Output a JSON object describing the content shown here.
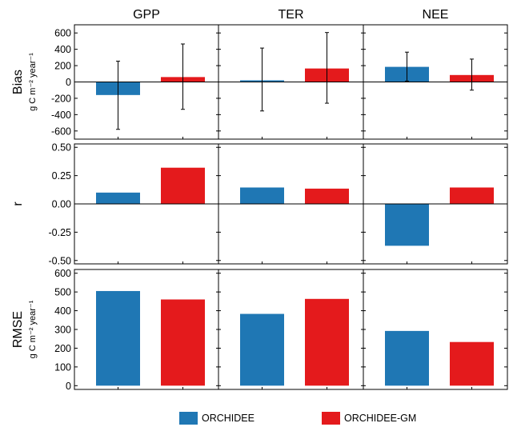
{
  "chart_data": {
    "type": "bar",
    "columns": [
      "GPP",
      "TER",
      "NEE"
    ],
    "legend": {
      "placement": "bottom",
      "entries": [
        {
          "name": "ORCHIDEE",
          "color": "#1f77b4"
        },
        {
          "name": "ORCHIDEE-GM",
          "color": "#e41a1c"
        }
      ]
    },
    "rows": [
      {
        "id": "bias",
        "label": "Bias",
        "unit": "g C m⁻² year⁻¹",
        "ylim": [
          -700,
          700
        ],
        "ticks": [
          -600,
          -400,
          -200,
          0,
          200,
          400,
          600
        ],
        "tick_labels": [
          "-600",
          "-400",
          "-200",
          "0",
          "200",
          "400",
          "600"
        ],
        "zero_line": true,
        "series": [
          {
            "name": "ORCHIDEE",
            "values": [
              -160,
              20,
              185
            ],
            "err_low": [
              -580,
              -355,
              10
            ],
            "err_high": [
              255,
              415,
              365
            ]
          },
          {
            "name": "ORCHIDEE-GM",
            "values": [
              60,
              165,
              85
            ],
            "err_low": [
              -335,
              -260,
              -100
            ],
            "err_high": [
              465,
              605,
              280
            ]
          }
        ]
      },
      {
        "id": "r",
        "label": "r",
        "unit": "",
        "ylim": [
          -0.53,
          0.53
        ],
        "ticks": [
          -0.5,
          -0.25,
          0,
          0.25,
          0.5
        ],
        "tick_labels": [
          "-0.50",
          "-0.25",
          "0.00",
          "0.25",
          "0.50"
        ],
        "zero_line": true,
        "series": [
          {
            "name": "ORCHIDEE",
            "values": [
              0.1,
              0.145,
              -0.37
            ]
          },
          {
            "name": "ORCHIDEE-GM",
            "values": [
              0.32,
              0.135,
              0.145
            ]
          }
        ]
      },
      {
        "id": "rmse",
        "label": "RMSE",
        "unit": "g C m⁻² year⁻¹",
        "ylim": [
          -20,
          620
        ],
        "ticks": [
          0,
          100,
          200,
          300,
          400,
          500,
          600
        ],
        "tick_labels": [
          "0",
          "100",
          "200",
          "300",
          "400",
          "500",
          "600"
        ],
        "zero_line": false,
        "series": [
          {
            "name": "ORCHIDEE",
            "values": [
              505,
              383,
              292
            ]
          },
          {
            "name": "ORCHIDEE-GM",
            "values": [
              460,
              463,
              233
            ]
          }
        ]
      }
    ]
  }
}
